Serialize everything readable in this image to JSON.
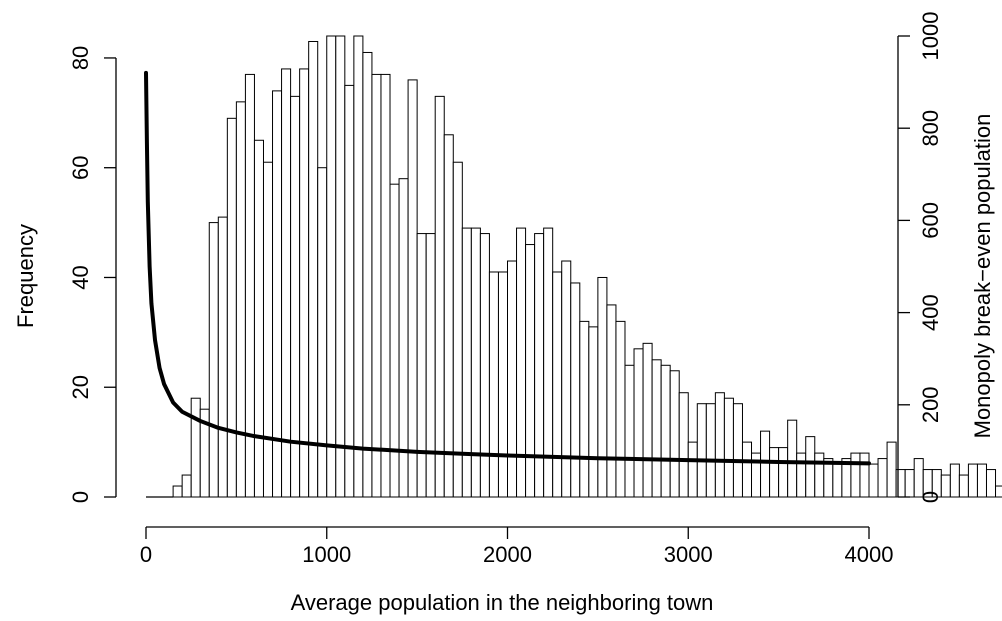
{
  "chart_data": {
    "type": "bar",
    "xlabel": "Average population in the neighboring town",
    "ylabel": "Frequency",
    "y2label": "Monopoly break−even population",
    "xlim": [
      0,
      4000
    ],
    "ylim": [
      0,
      84
    ],
    "y2lim": [
      0,
      1000
    ],
    "x_ticks": [
      0,
      1000,
      2000,
      3000,
      4000
    ],
    "y_ticks": [
      0,
      20,
      40,
      60,
      80
    ],
    "y2_ticks": [
      0,
      200,
      400,
      600,
      800,
      1000
    ],
    "grid": false,
    "legend": "none",
    "histogram": {
      "bin_width": 50,
      "bin_start": 150,
      "counts": [
        2,
        4,
        18,
        16,
        50,
        51,
        69,
        72,
        77,
        65,
        61,
        74,
        78,
        73,
        78,
        83,
        60,
        84,
        84,
        75,
        84,
        81,
        77,
        77,
        57,
        58,
        76,
        48,
        48,
        73,
        66,
        61,
        49,
        49,
        48,
        41,
        41,
        43,
        49,
        46,
        48,
        49,
        41,
        43,
        39,
        32,
        31,
        40,
        35,
        32,
        24,
        27,
        28,
        25,
        24,
        23,
        19,
        10,
        17,
        17,
        19,
        18,
        17,
        10,
        8,
        12,
        9,
        9,
        14,
        8,
        11,
        8,
        7,
        6,
        7,
        8,
        8,
        6,
        7,
        10,
        5,
        5,
        7,
        5,
        5,
        4,
        6,
        4,
        6,
        6,
        5,
        2,
        6,
        6
      ]
    },
    "series": [
      {
        "type": "line",
        "axis": "right",
        "x": [
          0,
          5,
          10,
          20,
          30,
          50,
          75,
          100,
          150,
          200,
          300,
          400,
          500,
          600,
          800,
          1000,
          1200,
          1500,
          1800,
          2000,
          2500,
          3000,
          3500,
          4000
        ],
        "values": [
          920,
          770,
          640,
          500,
          420,
          340,
          280,
          245,
          205,
          185,
          165,
          150,
          140,
          132,
          120,
          112,
          105,
          98,
          93,
          90,
          84,
          80,
          76,
          73
        ]
      }
    ]
  }
}
